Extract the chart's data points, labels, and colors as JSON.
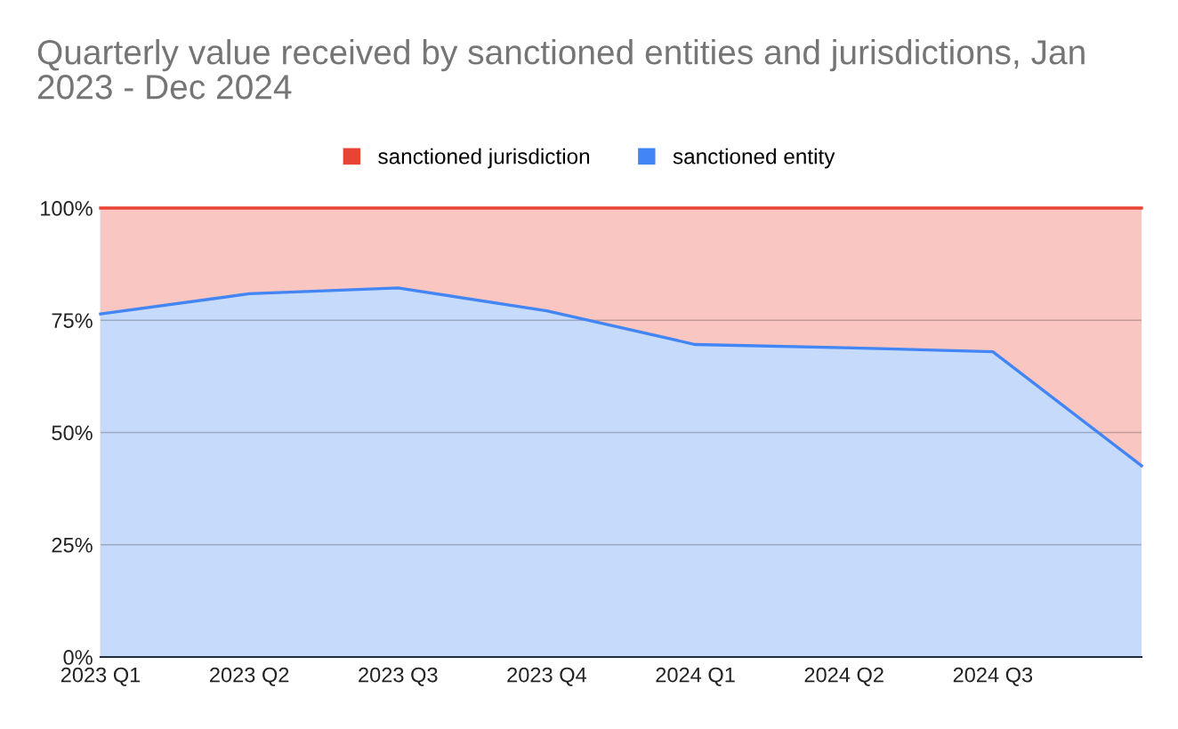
{
  "chart_data": {
    "type": "area",
    "title": "Quarterly value received by sanctioned entities and jurisdictions, Jan 2023 - Dec 2024",
    "categories": [
      "2023 Q1",
      "2023 Q2",
      "2023 Q3",
      "2023 Q4",
      "2024 Q1",
      "2024 Q2",
      "2024 Q3",
      null
    ],
    "stacked": true,
    "series": [
      {
        "name": "sanctioned entity",
        "color": "#4285f4",
        "values": [
          76.4,
          80.9,
          82.2,
          77.1,
          69.6,
          68.9,
          68.0,
          42.6
        ]
      },
      {
        "name": "sanctioned jurisdiction",
        "color": "#ea4335",
        "values": [
          23.6,
          19.1,
          17.8,
          22.9,
          30.4,
          31.1,
          32.0,
          57.4
        ]
      }
    ],
    "ylim": [
      0,
      100
    ],
    "yticks": [
      {
        "value": 0,
        "label": "0%"
      },
      {
        "value": 25,
        "label": "25%"
      },
      {
        "value": 50,
        "label": "50%"
      },
      {
        "value": 75,
        "label": "75%"
      },
      {
        "value": 100,
        "label": "100%"
      }
    ],
    "grid": "y",
    "legend": "top"
  }
}
